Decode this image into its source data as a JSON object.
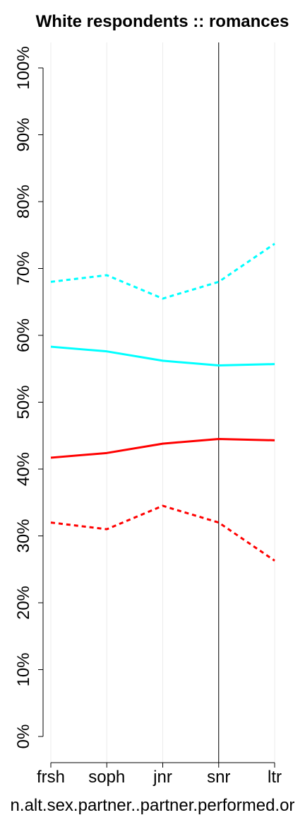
{
  "chart_data": {
    "type": "line",
    "title": "White respondents :: romances",
    "xlabel": "n.alt.sex.partner..partner.performed.or",
    "ylabel": "",
    "categories": [
      "frsh",
      "soph",
      "jnr",
      "snr",
      "ltr"
    ],
    "yticks": [
      "0%",
      "10%",
      "20%",
      "30%",
      "40%",
      "50%",
      "60%",
      "70%",
      "80%",
      "90%",
      "100%"
    ],
    "ylim": [
      0,
      100
    ],
    "reference_line_at": "snr",
    "grid": "vertical",
    "series": [
      {
        "color": "#00FFFF",
        "style": "dashed",
        "values": [
          68,
          69,
          65.5,
          68,
          73.7
        ]
      },
      {
        "color": "#00FFFF",
        "style": "solid",
        "values": [
          58.3,
          57.6,
          56.2,
          55.5,
          55.7
        ]
      },
      {
        "color": "#FF0000",
        "style": "solid",
        "values": [
          41.7,
          42.4,
          43.8,
          44.5,
          44.3
        ]
      },
      {
        "color": "#FF0000",
        "style": "dashed",
        "values": [
          32,
          31,
          34.5,
          32,
          26.3
        ]
      }
    ]
  }
}
